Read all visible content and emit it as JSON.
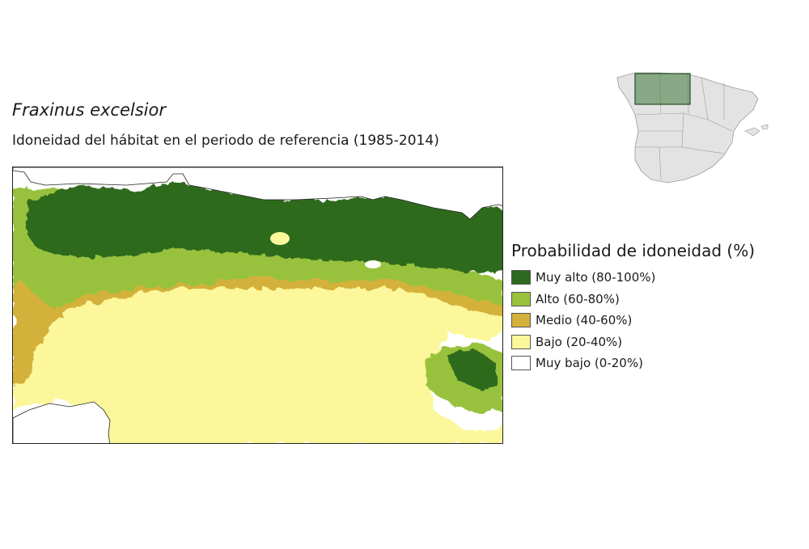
{
  "title": "Fraxinus excelsior",
  "subtitle": "Idoneidad del hábitat en el periodo de referencia (1985-2014)",
  "legend": {
    "title": "Probabilidad de idoneidad (%)",
    "items": [
      {
        "label": "Muy alto (80-100%)",
        "color": "#2d6a1f"
      },
      {
        "label": "Alto (60-80%)",
        "color": "#98c23c"
      },
      {
        "label": "Medio (40-60%)",
        "color": "#d4b13a"
      },
      {
        "label": "Bajo (20-40%)",
        "color": "#fbf79a"
      },
      {
        "label": "Muy bajo (0-20%)",
        "color": "#ffffff"
      }
    ]
  },
  "inset": {
    "land_color": "#e3e3e3",
    "border_color": "#9a9a9a",
    "highlight_fill": "#3f7a3a",
    "highlight_stroke": "#1f4f1f"
  }
}
